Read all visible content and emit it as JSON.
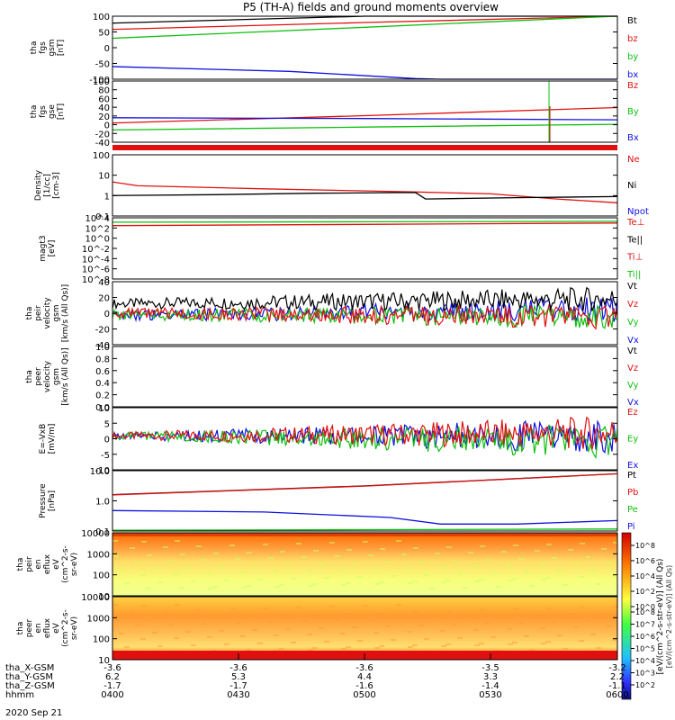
{
  "title": "P5 (TH-A) fields and ground moments overview",
  "colors": {
    "black": "#000000",
    "red": "#e01010",
    "green": "#10c010",
    "blue": "#1010e0"
  },
  "footer": {
    "rows": [
      {
        "label": "tha_X-GSM",
        "values": [
          "-3.6",
          "-3.6",
          "-3.6",
          "-3.5",
          "-3.2"
        ]
      },
      {
        "label": "tha_Y-GSM",
        "values": [
          "6.2",
          "5.3",
          "4.4",
          "3.3",
          "2.2"
        ]
      },
      {
        "label": "tha_Z-GSM",
        "values": [
          "-1.7",
          "-1.7",
          "-1.6",
          "-1.4",
          "-1.1"
        ]
      },
      {
        "label": "hhmm",
        "values": [
          "0400",
          "0430",
          "0500",
          "0530",
          "0600"
        ]
      }
    ],
    "date": "2020 Sep 21"
  },
  "colorbar": {
    "label": "[eV/(cm^2-s-str-eV)] (All Qs)",
    "ticks_top": [
      "10^8",
      "10^6",
      "10^4",
      "10^2",
      "10^0"
    ],
    "ticks_bottom": [
      "10^8",
      "10^7",
      "10^6",
      "10^5",
      "10^4",
      "10^3",
      "10^2"
    ],
    "overlap_label": "[eV/(cm^2-s-str-eV)] (All Qs)"
  },
  "chart_data": [
    {
      "type": "line",
      "ylabel": [
        "tha",
        "fgs",
        "gsm",
        "[nT]"
      ],
      "yticks": [
        "100",
        "50",
        "0",
        "-50",
        "-100"
      ],
      "ylim": [
        -100,
        100
      ],
      "legend": [
        {
          "name": "Bt",
          "color": "black"
        },
        {
          "name": "bz",
          "color": "red"
        },
        {
          "name": "by",
          "color": "green"
        },
        {
          "name": "bx",
          "color": "blue"
        }
      ],
      "series": [
        {
          "name": "Bt",
          "color": "black",
          "x": [
            0,
            0.5,
            1
          ],
          "y": [
            78,
            100,
            125
          ]
        },
        {
          "name": "bz",
          "color": "red",
          "x": [
            0,
            0.5,
            1
          ],
          "y": [
            58,
            80,
            105
          ]
        },
        {
          "name": "by",
          "color": "green",
          "x": [
            0,
            0.5,
            1
          ],
          "y": [
            30,
            65,
            105
          ]
        },
        {
          "name": "bx",
          "color": "blue",
          "x": [
            0,
            0.35,
            0.6,
            0.65,
            1
          ],
          "y": [
            -60,
            -75,
            -98,
            -100,
            -100
          ]
        }
      ]
    },
    {
      "type": "line",
      "ylabel": [
        "tha",
        "fgs",
        "gse",
        "[nT]"
      ],
      "yticks": [
        "100",
        "80",
        "60",
        "40",
        "20",
        "0",
        "-20",
        "-40"
      ],
      "ylim": [
        -50,
        100
      ],
      "legend": [
        {
          "name": "Bz",
          "color": "red"
        },
        {
          "name": "By",
          "color": "green"
        },
        {
          "name": "Bx",
          "color": "blue"
        }
      ],
      "series": [
        {
          "name": "Bz",
          "color": "red",
          "x": [
            0,
            0.5,
            1
          ],
          "y": [
            -3,
            15,
            35
          ]
        },
        {
          "name": "By",
          "color": "green",
          "x": [
            0,
            0.5,
            1
          ],
          "y": [
            -20,
            -13,
            -6
          ]
        },
        {
          "name": "Bx",
          "color": "blue",
          "x": [
            0,
            0.5,
            1
          ],
          "y": [
            10,
            8,
            5
          ]
        }
      ]
    },
    {
      "type": "line",
      "ylabel": [
        "Density",
        "[1/cc]",
        "[cm-3]"
      ],
      "yticks": [
        "100",
        "10",
        "1",
        "0.1"
      ],
      "ylim": [
        0.05,
        200
      ],
      "log": true,
      "legend": [
        {
          "name": "Ne",
          "color": "red"
        },
        {
          "name": "Ni",
          "color": "black"
        },
        {
          "name": "Npot",
          "color": "blue"
        }
      ],
      "series": [
        {
          "name": "Ne",
          "color": "red",
          "x": [
            0,
            0.05,
            0.3,
            0.5,
            0.6,
            0.75,
            0.88,
            1
          ],
          "y": [
            5,
            3,
            2,
            1.5,
            1.3,
            1.0,
            0.5,
            0.3
          ]
        },
        {
          "name": "Ni",
          "color": "black",
          "x": [
            0,
            0.2,
            0.4,
            0.6,
            0.62,
            0.8,
            1
          ],
          "y": [
            0.8,
            0.9,
            1.1,
            1.2,
            0.5,
            0.6,
            0.7
          ]
        }
      ]
    },
    {
      "type": "line",
      "ylabel": [
        "magt3",
        "[eV]"
      ],
      "yticks": [
        "10^4",
        "10^2",
        "10^0",
        "10^-2",
        "10^-4",
        "10^-6",
        "10^-8"
      ],
      "ylim": [
        -9,
        5
      ],
      "legend": [
        {
          "name": "Te⊥",
          "color": "red"
        },
        {
          "name": "Te||",
          "color": "black"
        },
        {
          "name": "Ti⊥",
          "color": "red"
        },
        {
          "name": "Ti||",
          "color": "green"
        }
      ],
      "series": [
        {
          "name": "Te⊥",
          "color": "red",
          "x": [
            0,
            0.5,
            1
          ],
          "y": [
            3.2,
            3.5,
            3.8
          ]
        },
        {
          "name": "Ti||",
          "color": "green",
          "x": [
            0,
            0.5,
            1
          ],
          "y": [
            4.0,
            4.1,
            4.2
          ]
        }
      ]
    },
    {
      "type": "line",
      "ylabel": [
        "tha",
        "peir",
        "velocity",
        "gsm",
        "[km/s (All Qs)]"
      ],
      "yticks": [
        "40",
        "20",
        "0",
        "-20",
        "-40"
      ],
      "ylim": [
        -40,
        40
      ],
      "legend": [
        {
          "name": "Vt",
          "color": "black"
        },
        {
          "name": "Vz",
          "color": "red"
        },
        {
          "name": "Vy",
          "color": "green"
        },
        {
          "name": "Vx",
          "color": "blue"
        }
      ],
      "series": [
        {
          "name": "Vt",
          "color": "black",
          "x": [
            0,
            1
          ],
          "y": [
            12,
            18
          ]
        },
        {
          "name": "Vz",
          "color": "red",
          "x": [
            0,
            1
          ],
          "y": [
            0,
            -5
          ]
        },
        {
          "name": "Vy",
          "color": "green",
          "x": [
            0,
            1
          ],
          "y": [
            -2,
            -4
          ]
        },
        {
          "name": "Vx",
          "color": "blue",
          "x": [
            0,
            1
          ],
          "y": [
            -3,
            5
          ]
        }
      ]
    },
    {
      "type": "line",
      "ylabel": [
        "tha",
        "peer",
        "velocity",
        "gsm",
        "[km/s (All Qs)]"
      ],
      "yticks": [
        "1.0",
        "0.8",
        "0.6",
        "0.4",
        "0.2",
        "0.0"
      ],
      "ylim": [
        0,
        1
      ],
      "legend": [
        {
          "name": "Vt",
          "color": "black"
        },
        {
          "name": "Vz",
          "color": "red"
        },
        {
          "name": "Vy",
          "color": "green"
        },
        {
          "name": "Vx",
          "color": "blue"
        }
      ],
      "series": []
    },
    {
      "type": "line",
      "ylabel": [
        "E=-VxB",
        "[mV/m]"
      ],
      "yticks": [
        "10",
        "5",
        "0",
        "-5",
        "-10"
      ],
      "ylim": [
        -12,
        10
      ],
      "legend": [
        {
          "name": "Ez",
          "color": "red"
        },
        {
          "name": "Ey",
          "color": "green"
        },
        {
          "name": "Ex",
          "color": "blue"
        }
      ],
      "series": [
        {
          "name": "Ez",
          "color": "red",
          "x": [
            0,
            1
          ],
          "y": [
            0,
            1
          ]
        },
        {
          "name": "Ey",
          "color": "green",
          "x": [
            0,
            1
          ],
          "y": [
            0,
            -2
          ]
        },
        {
          "name": "Ex",
          "color": "blue",
          "x": [
            0,
            1
          ],
          "y": [
            0,
            0
          ]
        }
      ]
    },
    {
      "type": "line",
      "ylabel": [
        "Pressure",
        "[nPa]"
      ],
      "yticks": [
        "10.0",
        "1.0",
        "0.1"
      ],
      "ylim": [
        0.02,
        60
      ],
      "log": true,
      "legend": [
        {
          "name": "Pt",
          "color": "black"
        },
        {
          "name": "Pb",
          "color": "red"
        },
        {
          "name": "Pe",
          "color": "green"
        },
        {
          "name": "Pi",
          "color": "blue"
        }
      ],
      "series": [
        {
          "name": "Pt",
          "color": "black",
          "x": [
            0,
            0.5,
            1
          ],
          "y": [
            2.5,
            8,
            40
          ]
        },
        {
          "name": "Pb",
          "color": "red",
          "x": [
            0,
            0.5,
            1
          ],
          "y": [
            2.4,
            7.8,
            40
          ]
        },
        {
          "name": "Pe",
          "color": "green",
          "x": [
            0,
            0.5,
            1
          ],
          "y": [
            0.022,
            0.024,
            0.026
          ]
        },
        {
          "name": "Pi",
          "color": "blue",
          "x": [
            0,
            0.3,
            0.55,
            0.65,
            0.8,
            1
          ],
          "y": [
            0.3,
            0.25,
            0.12,
            0.05,
            0.05,
            0.08
          ]
        }
      ]
    },
    {
      "type": "heatmap",
      "ylabel": [
        "tha",
        "peir",
        "en",
        "eflux",
        "eV",
        "(cm^2-s-",
        "sr-eV)"
      ],
      "yticks": [
        "10000",
        "1000",
        "100",
        "10"
      ]
    },
    {
      "type": "heatmap",
      "ylabel": [
        "tha",
        "peer",
        "en",
        "eflux",
        "eV",
        "(cm^2-s-",
        "sr-eV)"
      ],
      "yticks": [
        "10000",
        "1000",
        "100",
        "10"
      ]
    }
  ]
}
